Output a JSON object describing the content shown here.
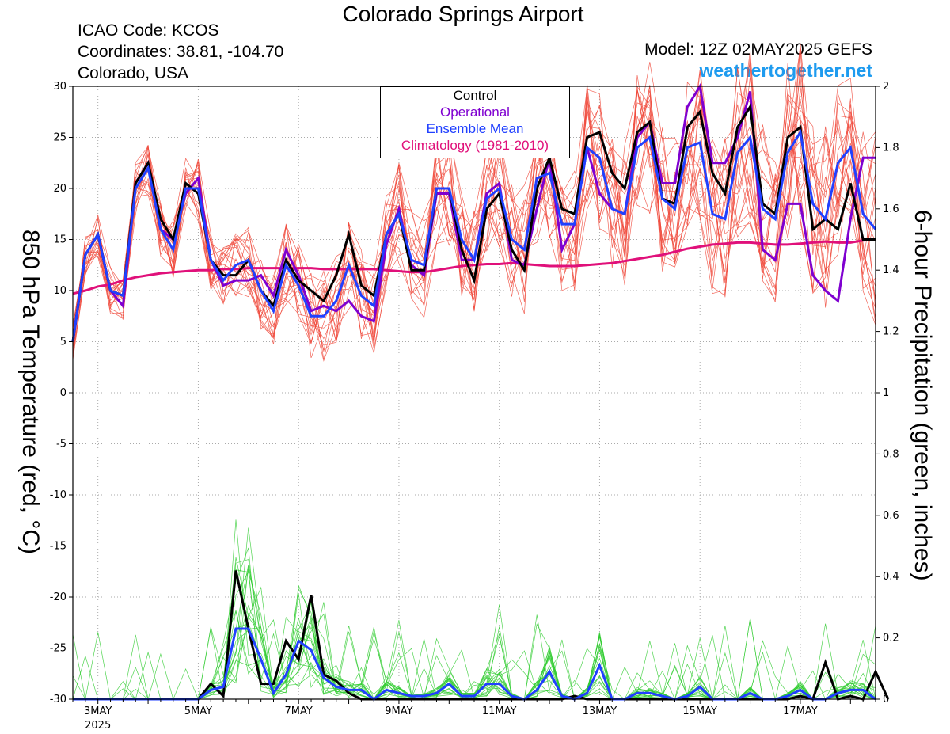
{
  "header": {
    "title": "Colorado Springs Airport",
    "icao": "ICAO Code: KCOS",
    "coords": "Coordinates: 38.81, -104.70",
    "region": "Colorado, USA",
    "model": "Model: 12Z 02MAY2025 GEFS",
    "site": "weathertogether.net"
  },
  "colors": {
    "site": "#1e9bef",
    "control": "#000000",
    "operational": "#7f00d0",
    "mean": "#2040ff",
    "climatology": "#e0107a",
    "members_temp": "#f04a3c",
    "members_precip": "#33cc33",
    "grid": "#aaaaaa"
  },
  "chart_data": {
    "type": "line",
    "title": "Colorado Springs Airport",
    "ylabel": "850 hPa Temperature (red, °C)",
    "y2label": "6-hour Precipitation (green, inches)",
    "ylim": [
      -30,
      30
    ],
    "y2lim": [
      0,
      2
    ],
    "yticks": [
      -30,
      -25,
      -20,
      -15,
      -10,
      -5,
      0,
      5,
      10,
      15,
      20,
      25,
      30
    ],
    "y2ticks": [
      0,
      0.2,
      0.4,
      0.6,
      0.8,
      1,
      1.2,
      1.4,
      1.6,
      1.8,
      2
    ],
    "x_start": "02MAY2025 12Z",
    "x_step_hours": 6,
    "x_tick_labels": [
      "3MAY",
      "5MAY",
      "7MAY",
      "9MAY",
      "11MAY",
      "13MAY",
      "15MAY",
      "17MAY"
    ],
    "x_tick_sublabel": "2025",
    "grid": true,
    "legend_position": "top-center",
    "legend": [
      "Control",
      "Operational",
      "Ensemble Mean",
      "Climatology (1981-2010)"
    ],
    "temperature_series": [
      {
        "name": "Control",
        "values": [
          5,
          13.5,
          15.5,
          10,
          9.5,
          20.5,
          22.5,
          17,
          15,
          20.5,
          19.5,
          13,
          11.5,
          11.5,
          13,
          10,
          8.5,
          13,
          11,
          10,
          9,
          11.5,
          15.5,
          10.5,
          9.5,
          15.5,
          17.5,
          12,
          12,
          20,
          20,
          14,
          11,
          18,
          19.5,
          14,
          12,
          20,
          23,
          18,
          17.5,
          25,
          25.5,
          21.5,
          20,
          25.5,
          26.5,
          19,
          18.5,
          26,
          27.5,
          21.5,
          19.5,
          26,
          28,
          18.5,
          17.5,
          25,
          26,
          16,
          17,
          16,
          20.5,
          15,
          15
        ]
      },
      {
        "name": "Operational",
        "values": [
          5,
          13.5,
          15.5,
          10,
          8.5,
          20.5,
          22.5,
          16,
          15,
          19.5,
          21,
          13,
          10.5,
          11,
          11,
          11.5,
          9.5,
          14,
          11.5,
          8,
          8.5,
          8,
          9,
          7.5,
          7,
          14.5,
          18,
          12.5,
          11.5,
          19.5,
          19.5,
          13,
          13,
          19.5,
          20.5,
          13,
          12.5,
          18,
          23,
          14,
          16.5,
          24,
          19.5,
          18,
          17.5,
          25,
          26.5,
          20.5,
          20.5,
          28,
          30,
          22.5,
          22.5,
          25,
          29.5,
          14,
          13,
          18.5,
          18.5,
          11.5,
          10,
          9,
          17,
          23,
          23
        ]
      },
      {
        "name": "Ensemble Mean",
        "values": [
          5,
          13.5,
          15.5,
          10,
          9.5,
          20,
          22,
          16,
          14,
          20,
          20,
          13,
          11,
          12.5,
          13,
          10,
          8,
          12.5,
          10.5,
          7.5,
          7.5,
          9,
          12.5,
          9.5,
          8.5,
          15.5,
          17.5,
          13,
          12.5,
          20,
          20,
          15,
          13,
          19,
          20,
          15,
          14,
          21,
          21.5,
          16.5,
          16.5,
          24,
          23,
          18,
          17.5,
          24,
          25,
          19,
          18,
          24,
          24.5,
          17.5,
          17,
          23.5,
          25,
          18,
          17,
          23.5,
          25.5,
          18.5,
          17,
          22.5,
          24,
          17.5,
          16
        ]
      },
      {
        "name": "Climatology (1981-2010)",
        "values": [
          9.7,
          10,
          10.4,
          10.6,
          11,
          11.3,
          11.5,
          11.7,
          11.8,
          11.9,
          12,
          12,
          12.1,
          12.1,
          12.2,
          12.2,
          12.2,
          12.2,
          12.2,
          12.2,
          12.1,
          12.1,
          12.1,
          12.1,
          12.1,
          12,
          11.9,
          11.8,
          11.8,
          12,
          12.2,
          12.4,
          12.5,
          12.6,
          12.6,
          12.7,
          12.6,
          12.5,
          12.4,
          12.4,
          12.4,
          12.5,
          12.6,
          12.7,
          12.9,
          13.1,
          13.3,
          13.5,
          13.8,
          14.1,
          14.3,
          14.5,
          14.6,
          14.7,
          14.7,
          14.6,
          14.5,
          14.5,
          14.6,
          14.7,
          14.8,
          14.7,
          14.7,
          14.9,
          15
        ]
      }
    ],
    "precip_series": [
      {
        "name": "Control",
        "values": [
          0,
          0,
          0,
          0,
          0,
          0,
          0,
          0,
          0,
          0,
          0,
          0.05,
          0.01,
          0.42,
          0.23,
          0.05,
          0.05,
          0.19,
          0.13,
          0.34,
          0.08,
          0.06,
          0.02,
          0,
          0,
          0,
          0,
          0,
          0,
          0,
          0,
          0,
          0,
          0,
          0,
          0,
          0,
          0,
          0,
          0,
          0.01,
          0,
          0,
          0,
          0,
          0,
          0,
          0,
          0,
          0,
          0,
          0,
          0,
          0,
          0,
          0,
          0,
          0,
          0.01,
          0,
          0.12,
          0,
          0.01,
          0,
          0.09,
          0
        ]
      },
      {
        "name": "Ensemble Mean",
        "values": [
          0,
          0,
          0,
          0,
          0,
          0,
          0,
          0,
          0,
          0,
          0,
          0.03,
          0.04,
          0.23,
          0.23,
          0.13,
          0.02,
          0.08,
          0.19,
          0.16,
          0.07,
          0.04,
          0.03,
          0.03,
          0,
          0.03,
          0.02,
          0.01,
          0.01,
          0.02,
          0.05,
          0.01,
          0.01,
          0.05,
          0.05,
          0.01,
          0,
          0.03,
          0.09,
          0.01,
          0,
          0.02,
          0.11,
          0,
          0,
          0.02,
          0.02,
          0.01,
          0,
          0.01,
          0.04,
          0,
          0,
          0,
          0.02,
          0,
          0,
          0.01,
          0.03,
          0,
          0,
          0.02,
          0.03,
          0.03,
          0
        ]
      }
    ]
  }
}
